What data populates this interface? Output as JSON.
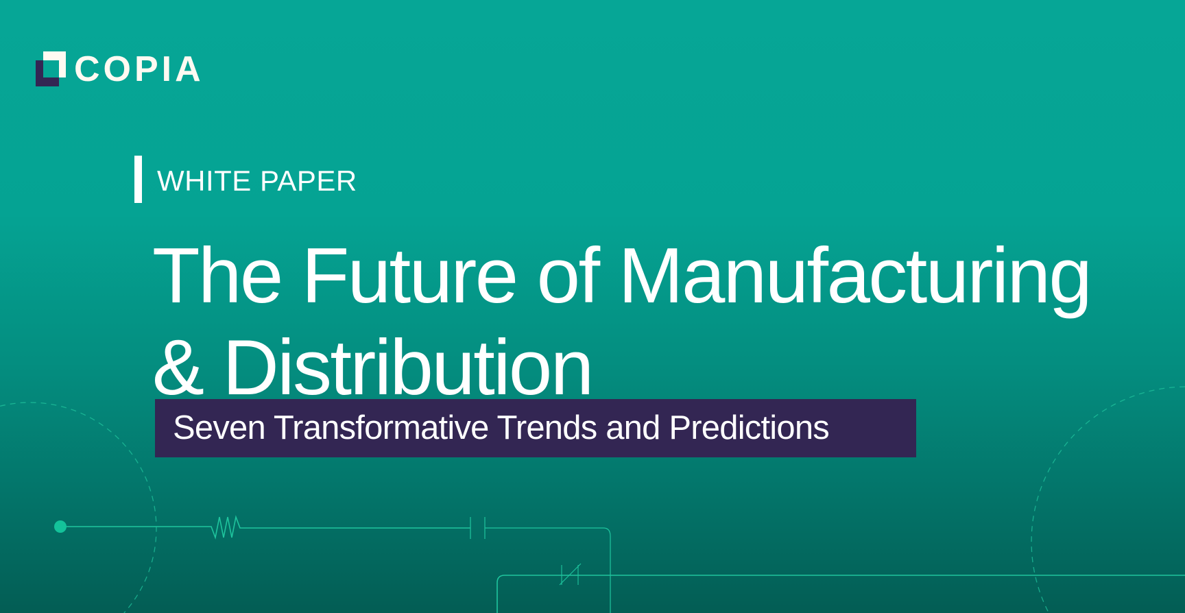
{
  "brand": {
    "name": "COPIA",
    "colors": {
      "teal": "#06a696",
      "purple": "#332653",
      "accent_line": "#1fc59e"
    }
  },
  "hero": {
    "eyebrow": "WHITE PAPER",
    "title_line1": "The Future of Manufacturing",
    "title_line2": "& Distribution",
    "subtitle": "Seven Transformative Trends and Predictions"
  },
  "decor": {
    "icons": [
      "circuit-line",
      "resistor-icon",
      "capacitor-icon",
      "switch-icon",
      "dashed-circle"
    ]
  }
}
